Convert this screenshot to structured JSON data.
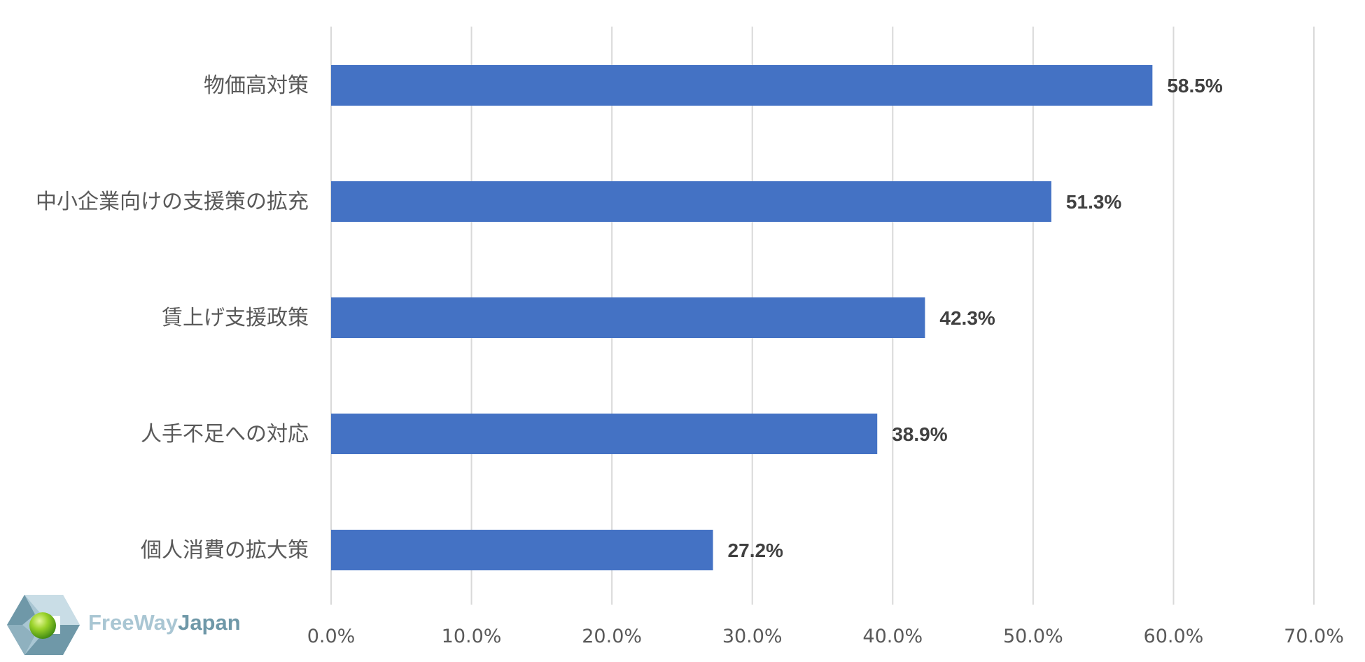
{
  "chart_data": {
    "type": "bar",
    "orientation": "horizontal",
    "categories": [
      "物価高対策",
      "中小企業向けの支援策の拡充",
      "賃上げ支援政策",
      "人手不足への対応",
      "個人消費の拡大策"
    ],
    "values": [
      58.5,
      51.3,
      42.3,
      38.9,
      27.2
    ],
    "data_labels": [
      "58.5%",
      "51.3%",
      "42.3%",
      "38.9%",
      "27.2%"
    ],
    "ticks": [
      0,
      10,
      20,
      30,
      40,
      50,
      60,
      70
    ],
    "tick_labels": [
      "0.0%",
      "10.0%",
      "20.0%",
      "30.0%",
      "40.0%",
      "50.0%",
      "60.0%",
      "70.0%"
    ],
    "xlim": [
      0,
      70
    ],
    "grid": true,
    "legend": "none",
    "bar_color": "#4472C4",
    "gridline_color": "#D9D9D9",
    "label_color": "#595959",
    "data_label_color": "#404040"
  },
  "logo": {
    "word1": "FreeWay",
    "word2": "Japan",
    "colors": {
      "light": "#a9c6d3",
      "dark": "#6f98a8",
      "ball": "#7cc21e"
    }
  }
}
